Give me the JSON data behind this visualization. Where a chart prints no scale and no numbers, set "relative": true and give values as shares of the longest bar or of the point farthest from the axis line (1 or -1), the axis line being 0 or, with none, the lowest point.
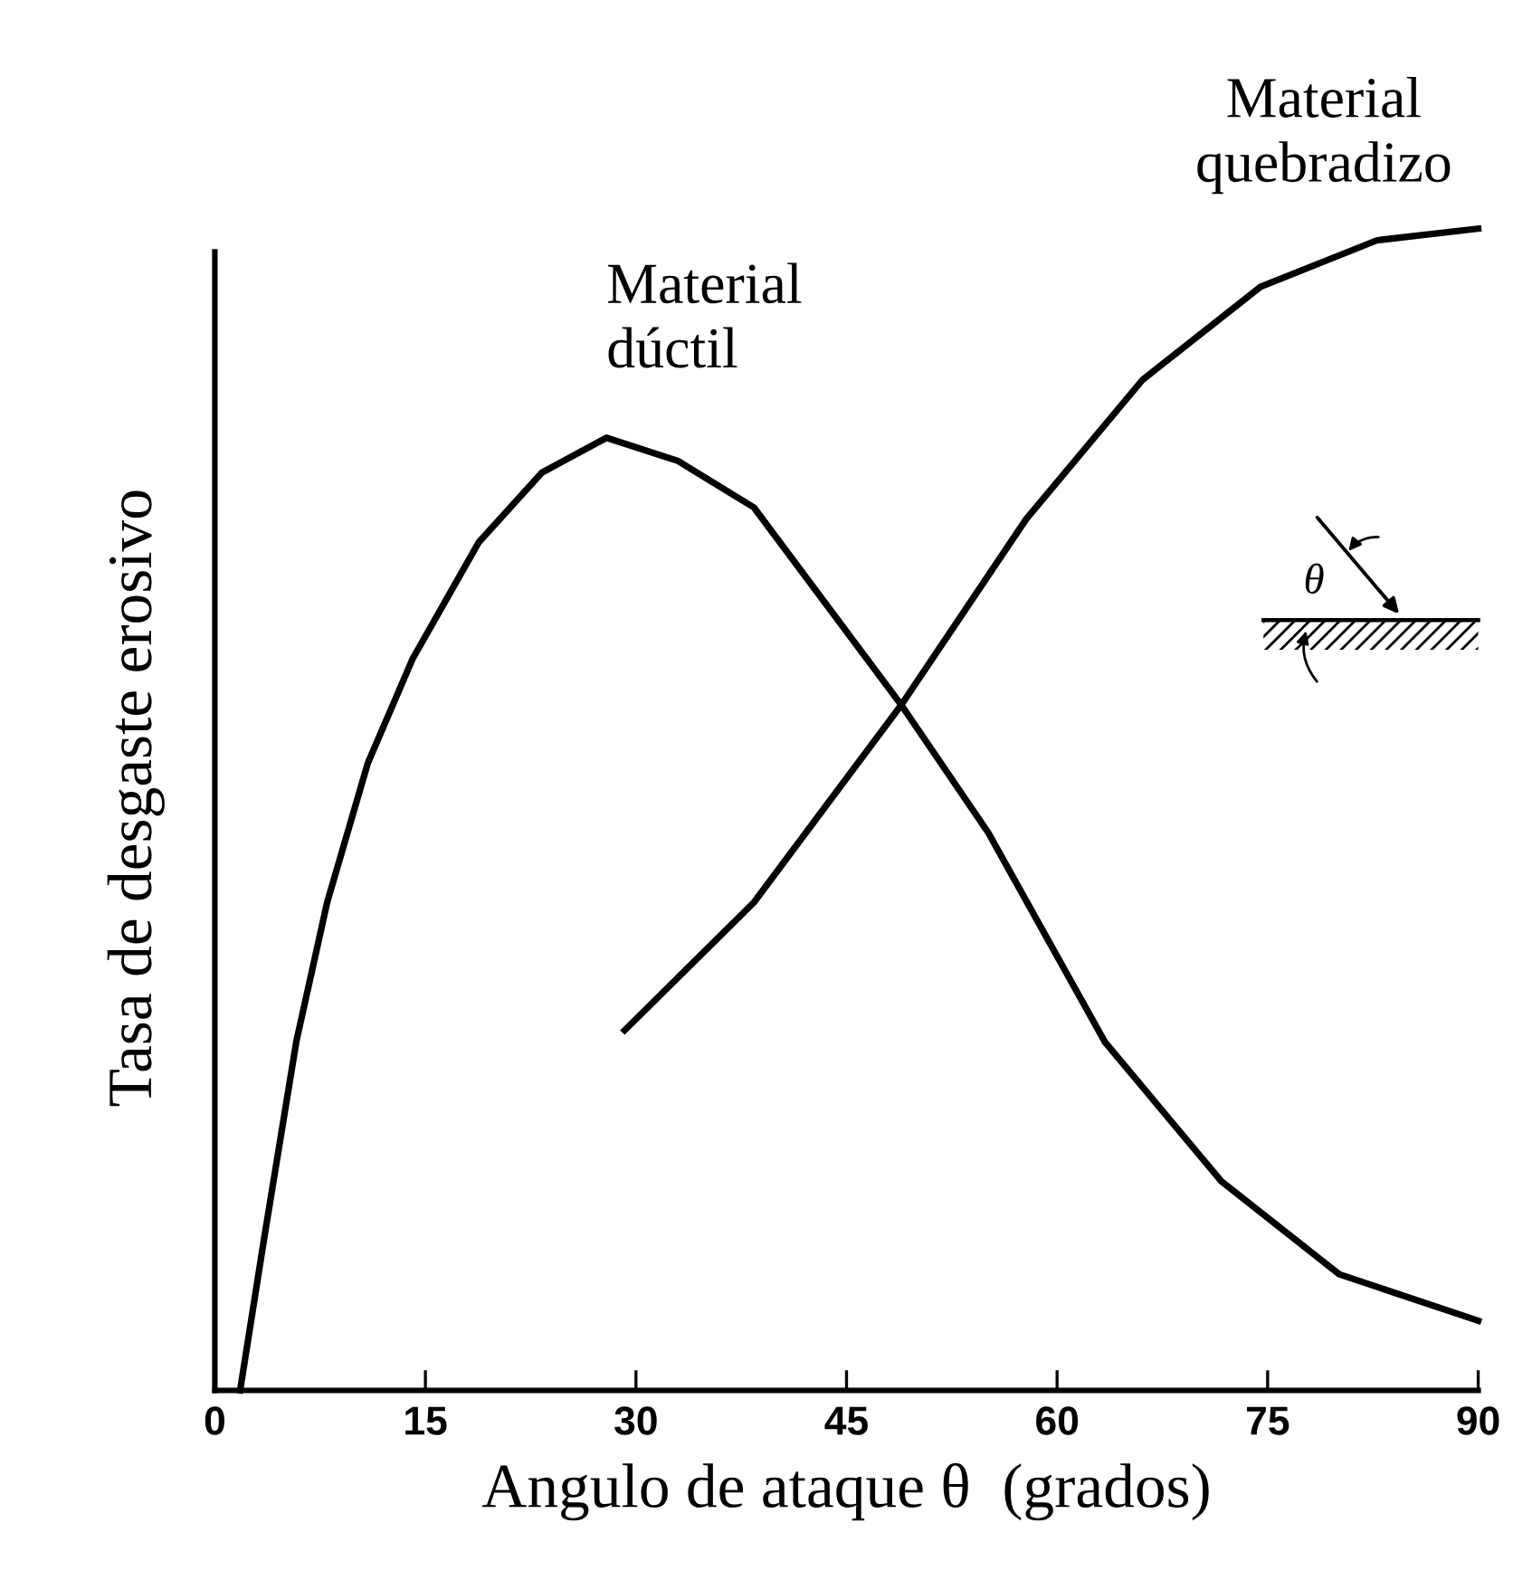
{
  "chart_data": {
    "type": "line",
    "relative": true,
    "xlabel": "Angulo de ataque θ  (grados)",
    "ylabel": "Tasa de desgaste erosivo",
    "xlim": [
      0,
      90
    ],
    "xticks": [
      0,
      15,
      30,
      45,
      60,
      75,
      90
    ],
    "series": [
      {
        "name": "Material dúctil",
        "color": "#000000",
        "x": [
          1.8,
          3.5,
          5.8,
          8.0,
          10.9,
          14.1,
          18.8,
          23.3,
          27.9,
          33.0,
          38.4,
          48.9,
          55.1,
          63.4,
          71.7,
          80.1,
          90
        ],
        "values": [
          0,
          0.13,
          0.3,
          0.42,
          0.54,
          0.63,
          0.73,
          0.79,
          0.82,
          0.8,
          0.76,
          0.59,
          0.48,
          0.3,
          0.18,
          0.1,
          0.06
        ]
      },
      {
        "name": "Material quebradizo",
        "color": "#000000",
        "x": [
          29.2,
          38.4,
          48.9,
          57.8,
          66.1,
          74.5,
          82.8,
          90
        ],
        "values": [
          0.31,
          0.42,
          0.59,
          0.75,
          0.87,
          0.95,
          0.99,
          1
        ]
      }
    ],
    "annotations": [
      "θ"
    ],
    "grid": false,
    "legend": false,
    "marker": "none",
    "line_style": "solid"
  }
}
